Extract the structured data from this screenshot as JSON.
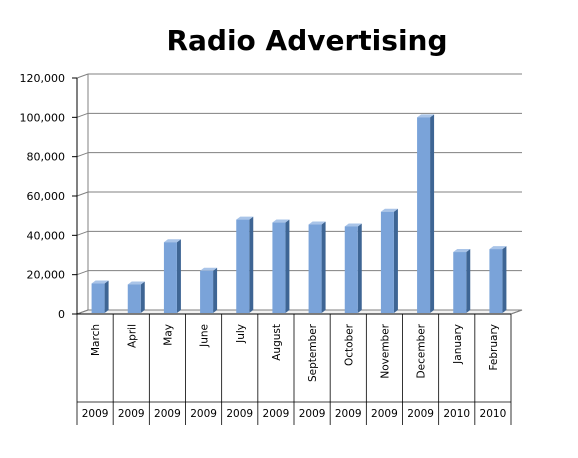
{
  "chart_data": {
    "type": "bar",
    "title": "Radio Advertising",
    "categories": [
      {
        "month": "March",
        "year": "2009"
      },
      {
        "month": "April",
        "year": "2009"
      },
      {
        "month": "May",
        "year": "2009"
      },
      {
        "month": "June",
        "year": "2009"
      },
      {
        "month": "July",
        "year": "2009"
      },
      {
        "month": "August",
        "year": "2009"
      },
      {
        "month": "September",
        "year": "2009"
      },
      {
        "month": "October",
        "year": "2009"
      },
      {
        "month": "November",
        "year": "2009"
      },
      {
        "month": "December",
        "year": "2009"
      },
      {
        "month": "January",
        "year": "2010"
      },
      {
        "month": "February",
        "year": "2010"
      }
    ],
    "values": [
      15500,
      15000,
      36500,
      22000,
      48000,
      46500,
      45500,
      44500,
      52000,
      100000,
      31500,
      33000
    ],
    "ylim": [
      0,
      120000
    ],
    "yticks": [
      "0",
      "20,000",
      "40,000",
      "60,000",
      "80,000",
      "100,000",
      "120,000"
    ],
    "grid": true,
    "colors": {
      "bar_front": "#7aa3d9",
      "bar_side": "#3e6594",
      "bar_top": "#a9c4e8",
      "grid": "#808080"
    }
  }
}
